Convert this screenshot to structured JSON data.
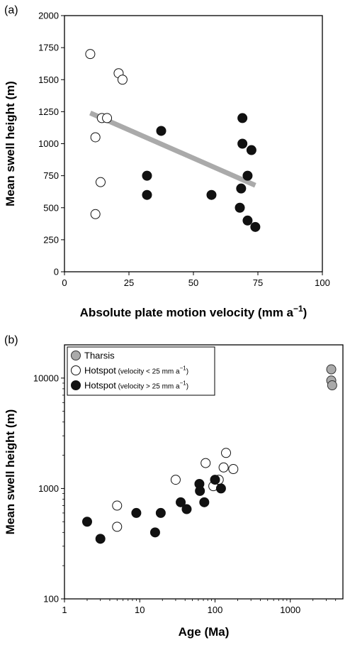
{
  "colors": {
    "filled": "#111111",
    "open": "#ffffff",
    "tharsis": "#aaaaaa",
    "trend_line": "#aaaaaa",
    "axis": "#000000"
  },
  "chart_data": [
    {
      "type": "scatter",
      "panel_label": "(a)",
      "panel_letter": "a",
      "xlabel": "Absolute plate motion velocity (mm a",
      "xlabel_sup": "−1",
      "xlabel_close": ")",
      "ylabel": "Mean swell height (m)",
      "xlim": [
        0,
        100
      ],
      "ylim": [
        0,
        2000
      ],
      "x_ticks": [
        0,
        25,
        50,
        75,
        100
      ],
      "y_ticks": [
        0,
        250,
        500,
        750,
        1000,
        1250,
        1500,
        1750,
        2000
      ],
      "grid": false,
      "series": [
        {
          "style": "open",
          "points": [
            [
              10,
              1700
            ],
            [
              21,
              1550
            ],
            [
              22.5,
              1500
            ],
            [
              14.5,
              1200
            ],
            [
              16.5,
              1200
            ],
            [
              12,
              1050
            ],
            [
              14,
              700
            ],
            [
              12,
              450
            ]
          ]
        },
        {
          "style": "filled",
          "points": [
            [
              37.5,
              1100
            ],
            [
              32,
              750
            ],
            [
              32,
              600
            ],
            [
              57,
              600
            ],
            [
              69,
              1200
            ],
            [
              69,
              1000
            ],
            [
              72.5,
              950
            ],
            [
              71,
              750
            ],
            [
              68.5,
              650
            ],
            [
              68,
              500
            ],
            [
              71,
              400
            ],
            [
              74,
              350
            ]
          ]
        }
      ],
      "trend_line": {
        "x": [
          10,
          74
        ],
        "y": [
          1240,
          675
        ]
      }
    },
    {
      "type": "scatter",
      "panel_label": "(b)",
      "panel_letter": "b",
      "xlabel": "Age (Ma)",
      "ylabel": "Mean swell height (m)",
      "x_scale": "log",
      "y_scale": "log",
      "xlim": [
        1,
        5000
      ],
      "ylim": [
        100,
        20000
      ],
      "x_ticks": [
        1,
        10,
        100,
        1000
      ],
      "y_ticks": [
        100,
        1000,
        10000
      ],
      "grid": false,
      "legend_position": "top-left",
      "legend": [
        {
          "style": "tharsis",
          "label": "Tharsis",
          "detail": ""
        },
        {
          "style": "open",
          "label": "Hotspot",
          "detail": "(velocity < 25 mm a",
          "detail_sup": "−1",
          "detail_close": ")"
        },
        {
          "style": "filled",
          "label": "Hotspot",
          "detail": "(velocity > 25 mm a",
          "detail_sup": "−1",
          "detail_close": ")"
        }
      ],
      "series": [
        {
          "style": "tharsis",
          "points": [
            [
              3500,
              12000
            ],
            [
              3500,
              9500
            ],
            [
              3600,
              8600
            ]
          ]
        },
        {
          "style": "open",
          "points": [
            [
              5,
              700
            ],
            [
              5,
              450
            ],
            [
              30,
              1200
            ],
            [
              75,
              1700
            ],
            [
              95,
              1050
            ],
            [
              112,
              1200
            ],
            [
              130,
              1550
            ],
            [
              140,
              2100
            ],
            [
              175,
              1500
            ]
          ]
        },
        {
          "style": "filled",
          "points": [
            [
              2,
              500
            ],
            [
              3,
              350
            ],
            [
              9,
              600
            ],
            [
              16,
              400
            ],
            [
              19,
              600
            ],
            [
              35,
              750
            ],
            [
              42,
              650
            ],
            [
              62,
              1100
            ],
            [
              63,
              950
            ],
            [
              72,
              750
            ],
            [
              100,
              1200
            ],
            [
              120,
              1000
            ]
          ]
        }
      ]
    }
  ]
}
